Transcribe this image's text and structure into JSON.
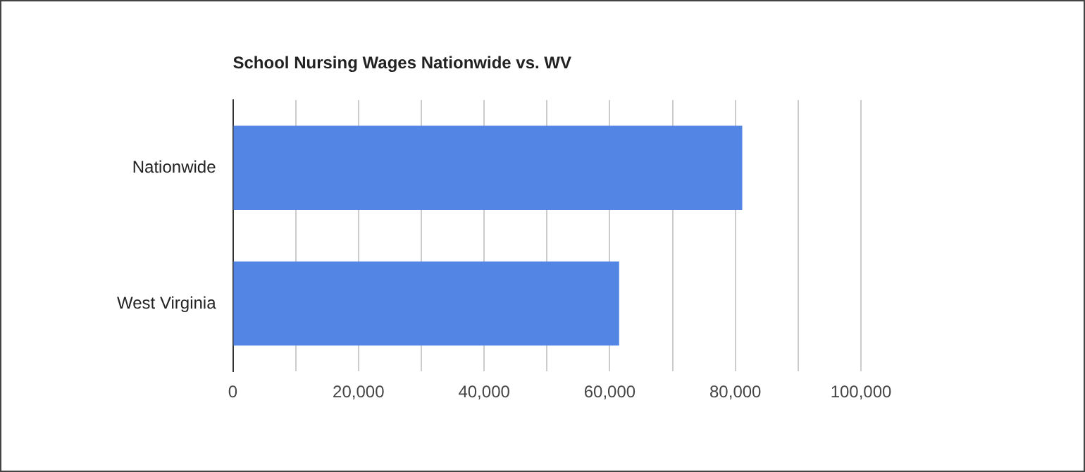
{
  "chart_data": {
    "type": "bar",
    "orientation": "horizontal",
    "title": "School Nursing Wages Nationwide vs. WV",
    "categories": [
      "Nationwide",
      "West Virginia"
    ],
    "values": [
      81100,
      61500
    ],
    "color": "#5386e4",
    "xlim": [
      0,
      100000
    ],
    "xticks": [
      0,
      {
        "value": 10000,
        "label": null
      },
      {
        "value": 20000,
        "label": "20,000"
      },
      {
        "value": 30000,
        "label": null
      },
      {
        "value": 40000,
        "label": "40,000"
      },
      {
        "value": 50000,
        "label": null
      },
      {
        "value": 60000,
        "label": "60,000"
      },
      {
        "value": 70000,
        "label": null
      },
      {
        "value": 80000,
        "label": "80,000"
      },
      {
        "value": 90000,
        "label": null
      },
      {
        "value": 100000,
        "label": "100,000"
      }
    ],
    "grid": "x"
  }
}
